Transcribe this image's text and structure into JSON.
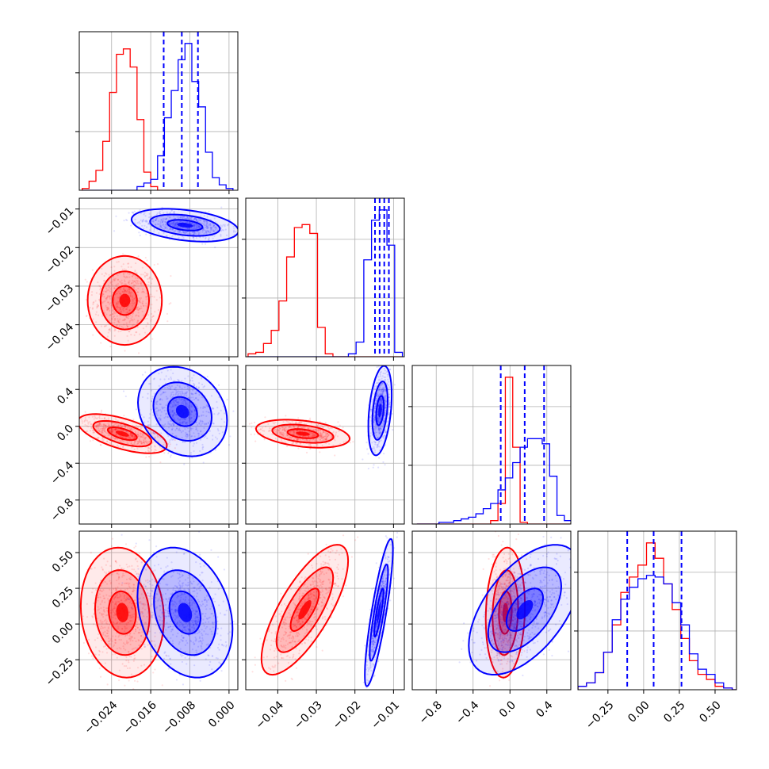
{
  "chart_data": {
    "type": "corner",
    "series": [
      {
        "name": "",
        "color": "#ff0000"
      },
      {
        "name": "",
        "color": "#0000ff"
      }
    ],
    "grid": true,
    "parameters": [
      {
        "range": [
          -0.0306,
          0.0018
        ],
        "ticks": [
          -0.024,
          -0.016,
          -0.008,
          0.0
        ],
        "tick_labels": [
          "−0.024",
          "−0.016",
          "−0.008",
          "0.000"
        ],
        "hist_x": [
          -0.03,
          -0.0286,
          -0.0272,
          -0.0258,
          -0.0244,
          -0.023,
          -0.0216,
          -0.0202,
          -0.0188,
          -0.0174,
          -0.016,
          -0.0146,
          -0.0132,
          -0.0118,
          -0.0104,
          -0.009,
          -0.0076,
          -0.0062,
          -0.0048,
          -0.0034,
          -0.002,
          -0.0006,
          0.0008
        ],
        "hist_red": [
          0.01,
          0.05,
          0.11,
          0.27,
          0.54,
          0.75,
          0.78,
          0.68,
          0.39,
          0.1,
          0.02,
          0.0,
          0,
          0,
          0,
          0,
          0,
          0,
          0,
          0,
          0,
          0
        ],
        "hist_blue": [
          0,
          0,
          0,
          0,
          0,
          0,
          0,
          0,
          0.02,
          0.04,
          0.06,
          0.19,
          0.4,
          0.55,
          0.72,
          0.81,
          0.6,
          0.46,
          0.21,
          0.07,
          0.03,
          0.01
        ],
        "quantiles_blue": [
          -0.01335,
          -0.00965,
          -0.00635
        ]
      },
      {
        "range": [
          -0.0483,
          -0.0072
        ],
        "ticks": [
          -0.04,
          -0.03,
          -0.02,
          -0.01
        ],
        "tick_labels": [
          "−0.04",
          "−0.03",
          "−0.02",
          "−0.01"
        ],
        "hist_x": [
          -0.0477,
          -0.0457,
          -0.0437,
          -0.0417,
          -0.0397,
          -0.0377,
          -0.0357,
          -0.0337,
          -0.0317,
          -0.0297,
          -0.0277,
          -0.0257,
          -0.0237,
          -0.0217,
          -0.0197,
          -0.0177,
          -0.0157,
          -0.0137,
          -0.0117,
          -0.0097,
          -0.0077
        ],
        "hist_red": [
          0.02,
          0.03,
          0.09,
          0.18,
          0.38,
          0.68,
          0.88,
          0.9,
          0.84,
          0.2,
          0.02,
          0,
          0,
          0,
          0,
          0,
          0,
          0,
          0,
          0
        ],
        "hist_blue": [
          0,
          0,
          0,
          0,
          0,
          0,
          0,
          0,
          0,
          0,
          0,
          0,
          0,
          0.02,
          0.1,
          0.66,
          0.93,
          1.0,
          0.76,
          0.03
        ],
        "quantiles_blue": [
          -0.0148,
          -0.0136,
          -0.0124,
          -0.0112
        ]
      },
      {
        "range": [
          -1.06,
          0.66
        ],
        "ticks": [
          -0.8,
          -0.4,
          0.0,
          0.4
        ],
        "tick_labels": [
          "−0.8",
          "−0.4",
          "0.0",
          "0.4"
        ],
        "hist_x": [
          -1.01,
          -0.93,
          -0.85,
          -0.77,
          -0.69,
          -0.61,
          -0.53,
          -0.45,
          -0.37,
          -0.29,
          -0.21,
          -0.13,
          -0.05,
          0.03,
          0.11,
          0.19,
          0.27,
          0.35,
          0.43,
          0.51,
          0.59,
          0.67
        ],
        "hist_red": [
          0,
          0,
          0,
          0,
          0,
          0,
          0,
          0,
          0,
          0,
          0.02,
          0.12,
          0.86,
          0.45,
          0.01,
          0,
          0,
          0,
          0,
          0,
          0
        ],
        "hist_blue": [
          0,
          0,
          0.0,
          0.01,
          0.01,
          0.02,
          0.03,
          0.04,
          0.06,
          0.09,
          0.12,
          0.2,
          0.27,
          0.36,
          0.45,
          0.5,
          0.5,
          0.47,
          0.28,
          0.05,
          0.02
        ],
        "quantiles_blue": [
          -0.1,
          0.16,
          0.37
        ]
      },
      {
        "range": [
          -0.46,
          0.65
        ],
        "ticks": [
          -0.25,
          0.0,
          0.25,
          0.5
        ],
        "tick_labels": [
          "−0.25",
          "0.00",
          "0.25",
          "0.50"
        ],
        "hist_x": [
          -0.46,
          -0.4,
          -0.34,
          -0.28,
          -0.22,
          -0.16,
          -0.1,
          -0.04,
          0.02,
          0.08,
          0.14,
          0.2,
          0.26,
          0.32,
          0.38,
          0.44,
          0.5,
          0.56,
          0.62,
          0.68
        ],
        "hist_red": [
          0.02,
          0.04,
          0.1,
          0.22,
          0.38,
          0.57,
          0.66,
          0.73,
          0.86,
          0.77,
          0.62,
          0.47,
          0.3,
          0.17,
          0.09,
          0.06,
          0.02,
          0.01,
          0.0
        ],
        "hist_blue": [
          0.02,
          0.04,
          0.1,
          0.22,
          0.41,
          0.53,
          0.6,
          0.65,
          0.67,
          0.66,
          0.62,
          0.51,
          0.38,
          0.21,
          0.12,
          0.09,
          0.04,
          0.01,
          0.0
        ],
        "quantiles_blue": [
          -0.115,
          0.07,
          0.265
        ]
      }
    ],
    "clusters": {
      "1_0": {
        "red": {
          "cx": -0.0213,
          "cy": -0.0337,
          "sx": 0.0025,
          "sy": 0.0038,
          "rho": 0.0
        },
        "blue": {
          "cx": -0.009,
          "cy": -0.0142,
          "sx": 0.0036,
          "sy": 0.0014,
          "rho": -0.35
        }
      },
      "2_0": {
        "red": {
          "cx": -0.0218,
          "cy": -0.08,
          "sx": 0.003,
          "sy": 0.07,
          "rho": -0.6
        },
        "blue": {
          "cx": -0.0095,
          "cy": 0.16,
          "sx": 0.003,
          "sy": 0.16,
          "rho": -0.2
        }
      },
      "2_1": {
        "red": {
          "cx": -0.0335,
          "cy": -0.08,
          "sx": 0.004,
          "sy": 0.05,
          "rho": -0.35
        },
        "blue": {
          "cx": -0.0135,
          "cy": 0.17,
          "sx": 0.001,
          "sy": 0.16,
          "rho": 0.35
        }
      },
      "3_0": {
        "red": {
          "cx": -0.0218,
          "cy": 0.08,
          "sx": 0.0028,
          "sy": 0.15,
          "rho": -0.1
        },
        "blue": {
          "cx": -0.009,
          "cy": 0.08,
          "sx": 0.0032,
          "sy": 0.15,
          "rho": -0.25
        }
      },
      "3_1": {
        "red": {
          "cx": -0.033,
          "cy": 0.1,
          "sx": 0.0037,
          "sy": 0.15,
          "rho": 0.75
        },
        "blue": {
          "cx": -0.0138,
          "cy": 0.08,
          "sx": 0.0012,
          "sy": 0.17,
          "rho": 0.85
        }
      },
      "3_2": {
        "red": {
          "cx": -0.05,
          "cy": 0.08,
          "sx": 0.07,
          "sy": 0.15,
          "rho": 0.1
        },
        "blue": {
          "cx": 0.16,
          "cy": 0.1,
          "sx": 0.2,
          "sy": 0.15,
          "rho": 0.55
        }
      }
    }
  }
}
